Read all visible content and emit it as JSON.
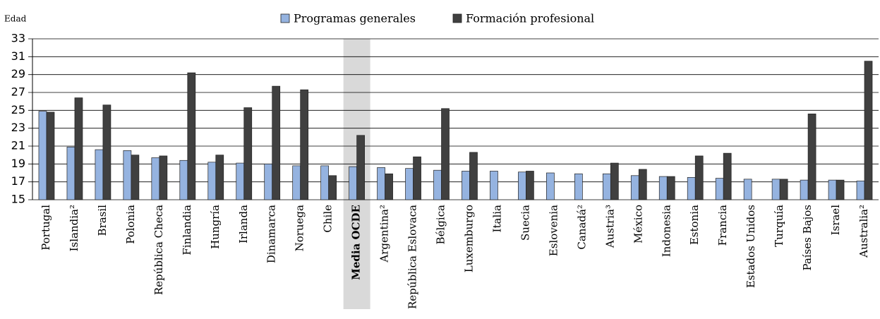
{
  "chart_data": {
    "type": "bar",
    "y_label": "Edad",
    "categories": [
      "Portugal",
      "Islandia²",
      "Brasil",
      "Polonia",
      "República Checa",
      "Finlandia",
      "Hungría",
      "Irlanda",
      "Dinamarca",
      "Noruega",
      "Chile",
      "Media OCDE",
      "Argentina²",
      "República Eslovaca",
      "Bélgica",
      "Luxemburgo",
      "Italia",
      "Suecia",
      "Eslovenia",
      "Canadá²",
      "Austria³",
      "México",
      "Indonesia",
      "Estonia",
      "Francia",
      "Estados Unidos",
      "Turquía",
      "Países Bajos",
      "Israel",
      "Australia²"
    ],
    "series": [
      {
        "name": "Programas generales",
        "color": "#95b3e0",
        "values": [
          24.9,
          20.9,
          20.6,
          20.5,
          19.7,
          19.4,
          19.2,
          19.1,
          19.0,
          18.8,
          18.8,
          18.7,
          18.6,
          18.5,
          18.3,
          18.2,
          18.2,
          18.1,
          18.0,
          17.9,
          17.9,
          17.7,
          17.6,
          17.5,
          17.4,
          17.3,
          17.3,
          17.2,
          17.2,
          17.1
        ]
      },
      {
        "name": "Formación profesional",
        "color": "#404040",
        "values": [
          24.8,
          26.4,
          25.6,
          20.0,
          19.9,
          29.2,
          20.0,
          25.3,
          27.7,
          27.3,
          17.7,
          22.2,
          17.9,
          19.8,
          25.2,
          20.3,
          null,
          18.2,
          null,
          null,
          19.1,
          18.4,
          17.6,
          19.9,
          20.2,
          null,
          17.3,
          24.6,
          17.2,
          30.5
        ]
      }
    ],
    "highlight": "Media OCDE",
    "ylim": [
      15,
      33
    ],
    "yticks": [
      15,
      17,
      19,
      21,
      23,
      25,
      27,
      29,
      31,
      33
    ],
    "grid": true
  }
}
